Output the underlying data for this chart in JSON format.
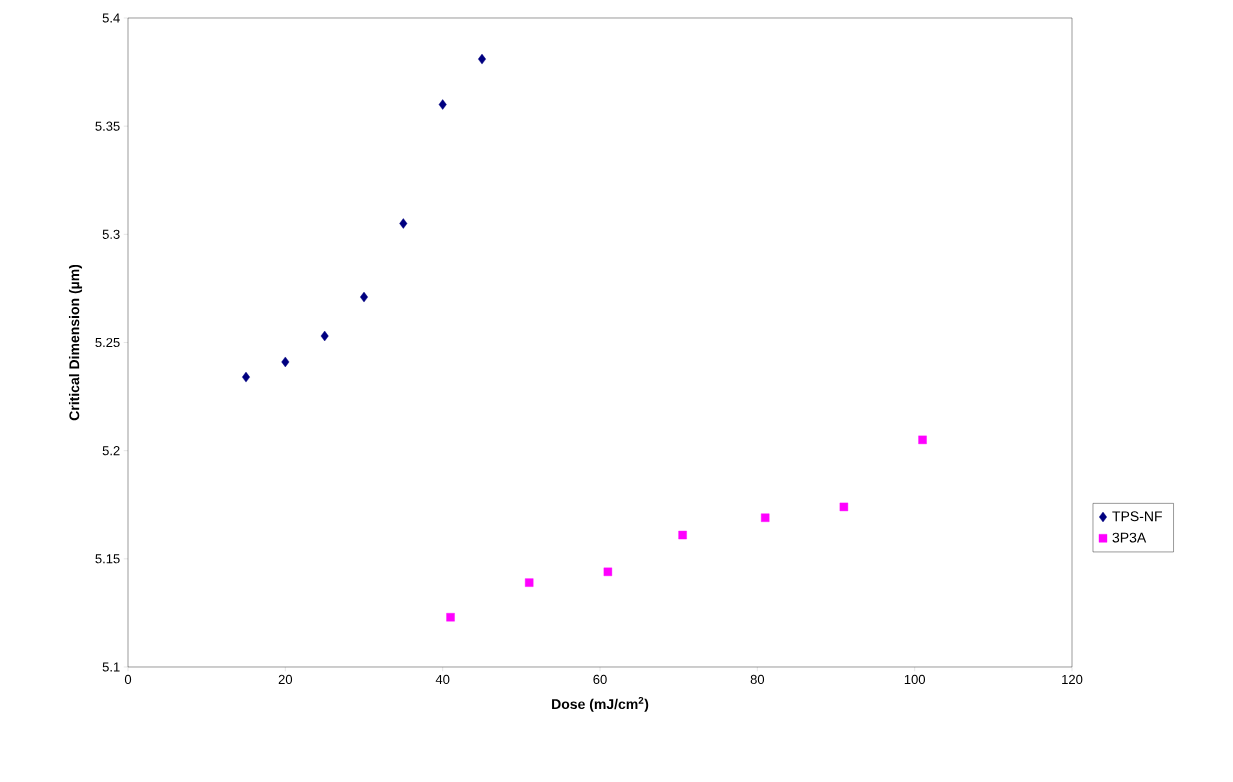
{
  "chart_data": {
    "type": "scatter",
    "xlabel": "Dose (mJ/cm$^{2}$)",
    "ylabel": "Critical Dimension (µm)",
    "xlim": [
      0,
      120
    ],
    "xticks": [
      0,
      20,
      40,
      60,
      80,
      100,
      120
    ],
    "ylim": [
      5.1,
      5.4
    ],
    "yticks": [
      5.1,
      5.15,
      5.2,
      5.25,
      5.3,
      5.35,
      5.4
    ],
    "grid": false,
    "legend": "right",
    "series": [
      {
        "name": "TPS-NF",
        "color": "#000080",
        "marker": "diamond",
        "x": [
          15,
          20,
          25,
          30,
          35,
          40,
          45
        ],
        "values": [
          5.234,
          5.241,
          5.253,
          5.271,
          5.305,
          5.36,
          5.381
        ]
      },
      {
        "name": "3P3A",
        "color": "#ff00ff",
        "marker": "square",
        "x": [
          41,
          51,
          61,
          70.5,
          81,
          91,
          101
        ],
        "values": [
          5.123,
          5.139,
          5.144,
          5.161,
          5.169,
          5.174,
          5.205
        ]
      }
    ]
  }
}
